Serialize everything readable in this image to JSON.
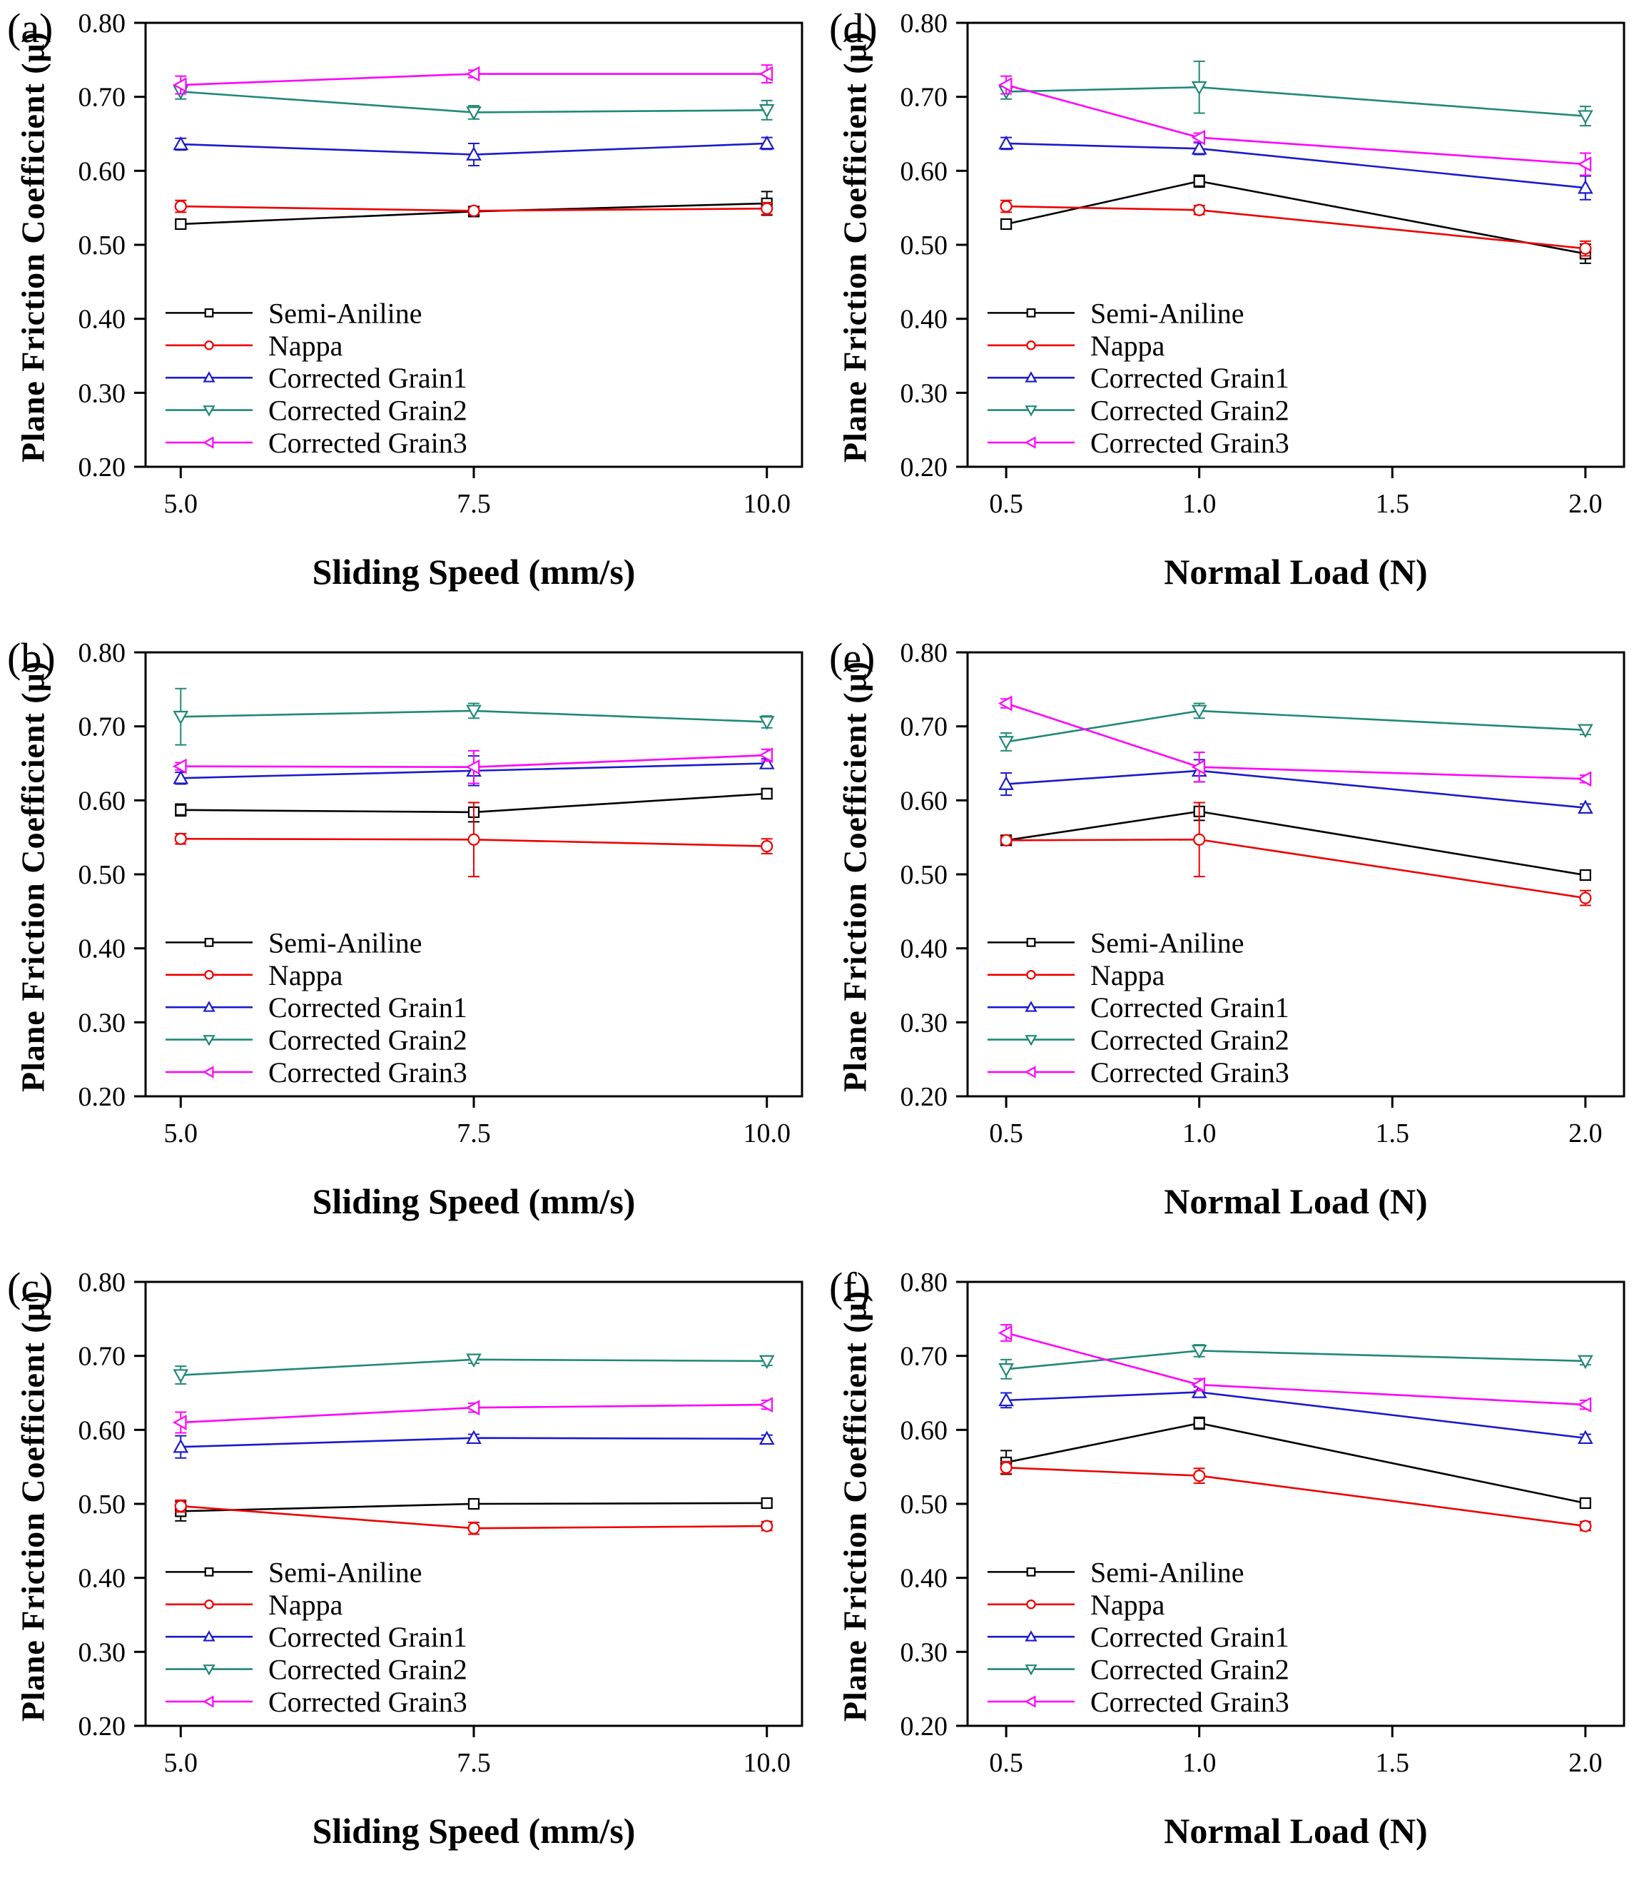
{
  "figure": {
    "ylabel": "Plane Friction Coefficient  (μ)",
    "background": "#ffffff",
    "axis_color": "#000000",
    "legend_position": "inside-lower-left",
    "grid": false,
    "error_bars": true
  },
  "chart_data": [
    {
      "id": "a",
      "type": "line",
      "tag": "(a)",
      "xlabel": "Sliding Speed (mm/s)",
      "ylabel": "Plane Friction Coefficient  (μ)",
      "xlim": [
        4.7,
        10.3
      ],
      "ylim": [
        0.2,
        0.8
      ],
      "x": [
        5.0,
        7.5,
        10.0
      ],
      "xticks": [
        {
          "label": "5.0",
          "value": 5.0
        },
        {
          "label": "7.5",
          "value": 7.5
        },
        {
          "label": "10.0",
          "value": 10.0
        }
      ],
      "ytick_labels": [
        "0.20",
        "0.30",
        "0.40",
        "0.50",
        "0.60",
        "0.70",
        "0.80"
      ],
      "series": [
        {
          "name": "Semi-Aniline",
          "color": "#000000",
          "marker": "square",
          "values": [
            0.528,
            0.545,
            0.556
          ],
          "errors": [
            0.006,
            0.004,
            0.016
          ]
        },
        {
          "name": "Nappa",
          "color": "#ee0000",
          "marker": "circle",
          "values": [
            0.552,
            0.546,
            0.549
          ],
          "errors": [
            0.008,
            0.004,
            0.008
          ]
        },
        {
          "name": "Corrected Grain1",
          "color": "#1a1acd",
          "marker": "triangle-up",
          "values": [
            0.636,
            0.622,
            0.637
          ],
          "errors": [
            0.008,
            0.015,
            0.008
          ]
        },
        {
          "name": "Corrected Grain2",
          "color": "#208878",
          "marker": "triangle-down",
          "values": [
            0.707,
            0.679,
            0.682
          ],
          "errors": [
            0.01,
            0.009,
            0.013
          ]
        },
        {
          "name": "Corrected Grain3",
          "color": "#ff00ff",
          "marker": "triangle-left",
          "values": [
            0.716,
            0.731,
            0.731
          ],
          "errors": [
            0.012,
            0.005,
            0.012
          ]
        }
      ]
    },
    {
      "id": "d",
      "type": "line",
      "tag": "(d)",
      "xlabel": "Normal Load (N)",
      "ylabel": "Plane Friction Coefficient  (μ)",
      "xlim": [
        0.4,
        2.1
      ],
      "ylim": [
        0.2,
        0.8
      ],
      "x": [
        0.5,
        1.0,
        2.0
      ],
      "xticks": [
        {
          "label": "0.5",
          "value": 0.5
        },
        {
          "label": "1.0",
          "value": 1.0
        },
        {
          "label": "1.5",
          "value": 1.5
        },
        {
          "label": "2.0",
          "value": 2.0
        }
      ],
      "ytick_labels": [
        "0.20",
        "0.30",
        "0.40",
        "0.50",
        "0.60",
        "0.70",
        "0.80"
      ],
      "series": [
        {
          "name": "Semi-Aniline",
          "color": "#000000",
          "marker": "square",
          "values": [
            0.528,
            0.586,
            0.488
          ],
          "errors": [
            0.006,
            0.008,
            0.013
          ]
        },
        {
          "name": "Nappa",
          "color": "#ee0000",
          "marker": "circle",
          "values": [
            0.552,
            0.547,
            0.495
          ],
          "errors": [
            0.008,
            0.006,
            0.01
          ]
        },
        {
          "name": "Corrected Grain1",
          "color": "#1a1acd",
          "marker": "triangle-up",
          "values": [
            0.637,
            0.63,
            0.577
          ],
          "errors": [
            0.008,
            0.008,
            0.016
          ]
        },
        {
          "name": "Corrected Grain2",
          "color": "#208878",
          "marker": "triangle-down",
          "values": [
            0.707,
            0.713,
            0.674
          ],
          "errors": [
            0.01,
            0.035,
            0.013
          ]
        },
        {
          "name": "Corrected Grain3",
          "color": "#ff00ff",
          "marker": "triangle-left",
          "values": [
            0.716,
            0.645,
            0.609
          ],
          "errors": [
            0.012,
            0.006,
            0.015
          ]
        }
      ]
    },
    {
      "id": "b",
      "type": "line",
      "tag": "(b)",
      "xlabel": "Sliding Speed (mm/s)",
      "ylabel": "Plane Friction Coefficient  (μ)",
      "xlim": [
        4.7,
        10.3
      ],
      "ylim": [
        0.2,
        0.8
      ],
      "x": [
        5.0,
        7.5,
        10.0
      ],
      "xticks": [
        {
          "label": "5.0",
          "value": 5.0
        },
        {
          "label": "7.5",
          "value": 7.5
        },
        {
          "label": "10.0",
          "value": 10.0
        }
      ],
      "ytick_labels": [
        "0.20",
        "0.30",
        "0.40",
        "0.50",
        "0.60",
        "0.70",
        "0.80"
      ],
      "series": [
        {
          "name": "Semi-Aniline",
          "color": "#000000",
          "marker": "square",
          "values": [
            0.587,
            0.584,
            0.609
          ],
          "errors": [
            0.008,
            0.013,
            0.007
          ]
        },
        {
          "name": "Nappa",
          "color": "#ee0000",
          "marker": "circle",
          "values": [
            0.548,
            0.547,
            0.538
          ],
          "errors": [
            0.007,
            0.05,
            0.01
          ]
        },
        {
          "name": "Corrected Grain1",
          "color": "#1a1acd",
          "marker": "triangle-up",
          "values": [
            0.63,
            0.64,
            0.65
          ],
          "errors": [
            0.008,
            0.02,
            0.006
          ]
        },
        {
          "name": "Corrected Grain2",
          "color": "#208878",
          "marker": "triangle-down",
          "values": [
            0.713,
            0.721,
            0.706
          ],
          "errors": [
            0.038,
            0.01,
            0.008
          ]
        },
        {
          "name": "Corrected Grain3",
          "color": "#ff00ff",
          "marker": "triangle-left",
          "values": [
            0.646,
            0.645,
            0.661
          ],
          "errors": [
            0.005,
            0.022,
            0.008
          ]
        }
      ]
    },
    {
      "id": "e",
      "type": "line",
      "tag": "(e)",
      "xlabel": "Normal Load (N)",
      "ylabel": "Plane Friction Coefficient  (μ)",
      "xlim": [
        0.4,
        2.1
      ],
      "ylim": [
        0.2,
        0.8
      ],
      "x": [
        0.5,
        1.0,
        2.0
      ],
      "xticks": [
        {
          "label": "0.5",
          "value": 0.5
        },
        {
          "label": "1.0",
          "value": 1.0
        },
        {
          "label": "1.5",
          "value": 1.5
        },
        {
          "label": "2.0",
          "value": 2.0
        }
      ],
      "ytick_labels": [
        "0.20",
        "0.30",
        "0.40",
        "0.50",
        "0.60",
        "0.70",
        "0.80"
      ],
      "series": [
        {
          "name": "Semi-Aniline",
          "color": "#000000",
          "marker": "square",
          "values": [
            0.546,
            0.585,
            0.499
          ],
          "errors": [
            0.005,
            0.012,
            0.006
          ]
        },
        {
          "name": "Nappa",
          "color": "#ee0000",
          "marker": "circle",
          "values": [
            0.546,
            0.547,
            0.468
          ],
          "errors": [
            0.005,
            0.05,
            0.01
          ]
        },
        {
          "name": "Corrected Grain1",
          "color": "#1a1acd",
          "marker": "triangle-up",
          "values": [
            0.622,
            0.64,
            0.59
          ],
          "errors": [
            0.015,
            0.015,
            0.005
          ]
        },
        {
          "name": "Corrected Grain2",
          "color": "#208878",
          "marker": "triangle-down",
          "values": [
            0.679,
            0.721,
            0.695
          ],
          "errors": [
            0.012,
            0.01,
            0.006
          ]
        },
        {
          "name": "Corrected Grain3",
          "color": "#ff00ff",
          "marker": "triangle-left",
          "values": [
            0.731,
            0.645,
            0.629
          ],
          "errors": [
            0.006,
            0.02,
            0.005
          ]
        }
      ]
    },
    {
      "id": "c",
      "type": "line",
      "tag": "(c)",
      "xlabel": "Sliding Speed (mm/s)",
      "ylabel": "Plane Friction Coefficient  (μ)",
      "xlim": [
        4.7,
        10.3
      ],
      "ylim": [
        0.2,
        0.8
      ],
      "x": [
        5.0,
        7.5,
        10.0
      ],
      "xticks": [
        {
          "label": "5.0",
          "value": 5.0
        },
        {
          "label": "7.5",
          "value": 7.5
        },
        {
          "label": "10.0",
          "value": 10.0
        }
      ],
      "ytick_labels": [
        "0.20",
        "0.30",
        "0.40",
        "0.50",
        "0.60",
        "0.70",
        "0.80"
      ],
      "series": [
        {
          "name": "Semi-Aniline",
          "color": "#000000",
          "marker": "square",
          "values": [
            0.49,
            0.5,
            0.501
          ],
          "errors": [
            0.013,
            0.005,
            0.005
          ]
        },
        {
          "name": "Nappa",
          "color": "#ee0000",
          "marker": "circle",
          "values": [
            0.497,
            0.467,
            0.47
          ],
          "errors": [
            0.008,
            0.008,
            0.006
          ]
        },
        {
          "name": "Corrected Grain1",
          "color": "#1a1acd",
          "marker": "triangle-up",
          "values": [
            0.577,
            0.589,
            0.588
          ],
          "errors": [
            0.015,
            0.005,
            0.005
          ]
        },
        {
          "name": "Corrected Grain2",
          "color": "#208878",
          "marker": "triangle-down",
          "values": [
            0.674,
            0.695,
            0.693
          ],
          "errors": [
            0.012,
            0.005,
            0.006
          ]
        },
        {
          "name": "Corrected Grain3",
          "color": "#ff00ff",
          "marker": "triangle-left",
          "values": [
            0.61,
            0.63,
            0.634
          ],
          "errors": [
            0.014,
            0.006,
            0.006
          ]
        }
      ]
    },
    {
      "id": "f",
      "type": "line",
      "tag": "(f)",
      "xlabel": "Normal Load (N)",
      "ylabel": "Plane Friction Coefficient  (μ)",
      "xlim": [
        0.4,
        2.1
      ],
      "ylim": [
        0.2,
        0.8
      ],
      "x": [
        0.5,
        1.0,
        2.0
      ],
      "xticks": [
        {
          "label": "0.5",
          "value": 0.5
        },
        {
          "label": "1.0",
          "value": 1.0
        },
        {
          "label": "1.5",
          "value": 1.5
        },
        {
          "label": "2.0",
          "value": 2.0
        }
      ],
      "ytick_labels": [
        "0.20",
        "0.30",
        "0.40",
        "0.50",
        "0.60",
        "0.70",
        "0.80"
      ],
      "series": [
        {
          "name": "Semi-Aniline",
          "color": "#000000",
          "marker": "square",
          "values": [
            0.556,
            0.609,
            0.501
          ],
          "errors": [
            0.016,
            0.008,
            0.005
          ]
        },
        {
          "name": "Nappa",
          "color": "#ee0000",
          "marker": "circle",
          "values": [
            0.549,
            0.538,
            0.47
          ],
          "errors": [
            0.008,
            0.01,
            0.006
          ]
        },
        {
          "name": "Corrected Grain1",
          "color": "#1a1acd",
          "marker": "triangle-up",
          "values": [
            0.64,
            0.651,
            0.589
          ],
          "errors": [
            0.01,
            0.007,
            0.005
          ]
        },
        {
          "name": "Corrected Grain2",
          "color": "#208878",
          "marker": "triangle-down",
          "values": [
            0.682,
            0.707,
            0.693
          ],
          "errors": [
            0.013,
            0.008,
            0.005
          ]
        },
        {
          "name": "Corrected Grain3",
          "color": "#ff00ff",
          "marker": "triangle-left",
          "values": [
            0.731,
            0.661,
            0.634
          ],
          "errors": [
            0.011,
            0.008,
            0.006
          ]
        }
      ]
    }
  ]
}
